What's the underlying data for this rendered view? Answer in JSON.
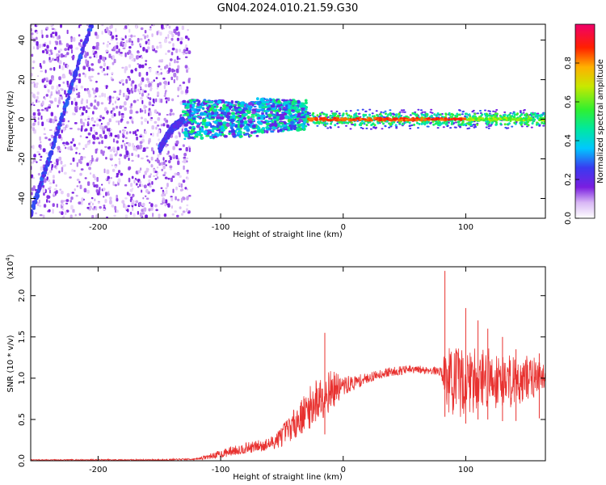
{
  "title": "GN04.2024.010.21.59.G30",
  "colors": {
    "background": "#ffffff",
    "axis": "#000000",
    "snr_line": "#e8312f",
    "spectrogram_purple": "#7a1ee0",
    "spectrogram_blue": "#3a3af0",
    "spectrogram_cyan": "#2fd0e0",
    "spectrogram_green": "#3ff03f",
    "spectrogram_red": "#e01a1a"
  },
  "chart_data": [
    {
      "id": "spectrogram",
      "type": "heatmap",
      "xlabel": "Height of straight line (km)",
      "ylabel": "Frequency (Hz)",
      "xlim": [
        -255,
        165
      ],
      "ylim": [
        -50,
        48
      ],
      "x_ticks": [
        -200,
        -100,
        0,
        100
      ],
      "x_tick_labels": [
        "-200",
        "-100",
        "0",
        "100"
      ],
      "y_ticks": [
        -40,
        -20,
        0,
        20,
        40
      ],
      "y_tick_labels": [
        "-40",
        "-20",
        "0",
        "20",
        "40"
      ],
      "tracks": [
        {
          "name": "noise-region",
          "x_range": [
            -255,
            -125
          ],
          "freq_range": [
            -50,
            48
          ],
          "amplitude": 0.15
        },
        {
          "name": "diagonal-streak",
          "points": [
            [
              -255,
              -48
            ],
            [
              -240,
              -20
            ],
            [
              -225,
              10
            ],
            [
              -210,
              40
            ],
            [
              -205,
              48
            ]
          ],
          "amplitude": 0.25
        },
        {
          "name": "secondary-streak",
          "points": [
            [
              -150,
              -15
            ],
            [
              -140,
              -5
            ],
            [
              -130,
              0
            ]
          ],
          "amplitude": 0.25
        },
        {
          "name": "transition-band",
          "x_range": [
            -130,
            -30
          ],
          "center_freq": 0,
          "half_width": 10,
          "amplitude": 0.45
        },
        {
          "name": "coherent-carrier",
          "x_range": [
            -30,
            165
          ],
          "center_freq": 0,
          "half_width": 3,
          "amplitude": 0.9
        }
      ],
      "colorbar": {
        "label": "Normalized spectral amplitude",
        "range": [
          0.0,
          1.0
        ],
        "ticks": [
          0.0,
          0.2,
          0.4,
          0.6,
          0.8
        ],
        "tick_labels": [
          "0.0",
          "0.2",
          "0.4",
          "0.6",
          "0.8"
        ],
        "stops": [
          {
            "offset": 0.0,
            "color": "#ffffff"
          },
          {
            "offset": 0.08,
            "color": "#d9b8f5"
          },
          {
            "offset": 0.16,
            "color": "#7a1ee0"
          },
          {
            "offset": 0.26,
            "color": "#3a3af0"
          },
          {
            "offset": 0.36,
            "color": "#00c8ff"
          },
          {
            "offset": 0.46,
            "color": "#00e8a0"
          },
          {
            "offset": 0.56,
            "color": "#30f030"
          },
          {
            "offset": 0.68,
            "color": "#c8e800"
          },
          {
            "offset": 0.78,
            "color": "#ffb000"
          },
          {
            "offset": 0.88,
            "color": "#ff2000"
          },
          {
            "offset": 1.0,
            "color": "#f0006a"
          }
        ]
      }
    },
    {
      "id": "snr",
      "type": "line",
      "xlabel": "Height of straight line (km)",
      "ylabel": "SNR (10 * v/v)",
      "y_scale_label": "(x10",
      "y_scale_exponent": "4",
      "y_scale_close": ")",
      "xlim": [
        -255,
        165
      ],
      "ylim": [
        0,
        2.35
      ],
      "x_ticks": [
        -200,
        -100,
        0,
        100
      ],
      "x_tick_labels": [
        "-200",
        "-100",
        "0",
        "100"
      ],
      "y_ticks": [
        0.0,
        0.5,
        1.0,
        1.5,
        2.0
      ],
      "y_tick_labels": [
        "0.0",
        "0.5",
        "1.0",
        "1.5",
        "2.0"
      ],
      "series": [
        {
          "name": "SNR",
          "envelope_x": [
            -255,
            -200,
            -150,
            -120,
            -100,
            -90,
            -80,
            -60,
            -50,
            -40,
            -30,
            -20,
            -15,
            -10,
            0,
            10,
            20,
            30,
            40,
            50,
            60,
            70,
            80,
            85,
            90,
            100,
            110,
            120,
            130,
            140,
            150,
            165
          ],
          "envelope_y": [
            0.01,
            0.01,
            0.01,
            0.02,
            0.08,
            0.12,
            0.15,
            0.2,
            0.3,
            0.45,
            0.6,
            0.75,
            0.82,
            0.85,
            0.9,
            0.95,
            1.0,
            1.05,
            1.08,
            1.1,
            1.1,
            1.1,
            1.08,
            1.0,
            0.95,
            0.95,
            1.0,
            1.0,
            0.98,
            0.98,
            1.0,
            1.02
          ],
          "noise_amp_x": [
            -255,
            -120,
            -100,
            -60,
            -40,
            -20,
            -10,
            0,
            20,
            80,
            85,
            150,
            165
          ],
          "noise_amp_y": [
            0.005,
            0.01,
            0.05,
            0.08,
            0.18,
            0.3,
            0.25,
            0.12,
            0.06,
            0.05,
            0.45,
            0.3,
            0.15
          ],
          "spikes": [
            [
              -15,
              1.55
            ],
            [
              83,
              2.3
            ],
            [
              100,
              1.85
            ],
            [
              110,
              1.7
            ],
            [
              118,
              1.6
            ],
            [
              130,
              1.5
            ],
            [
              141,
              1.35
            ],
            [
              160,
              1.3
            ]
          ]
        }
      ]
    }
  ]
}
